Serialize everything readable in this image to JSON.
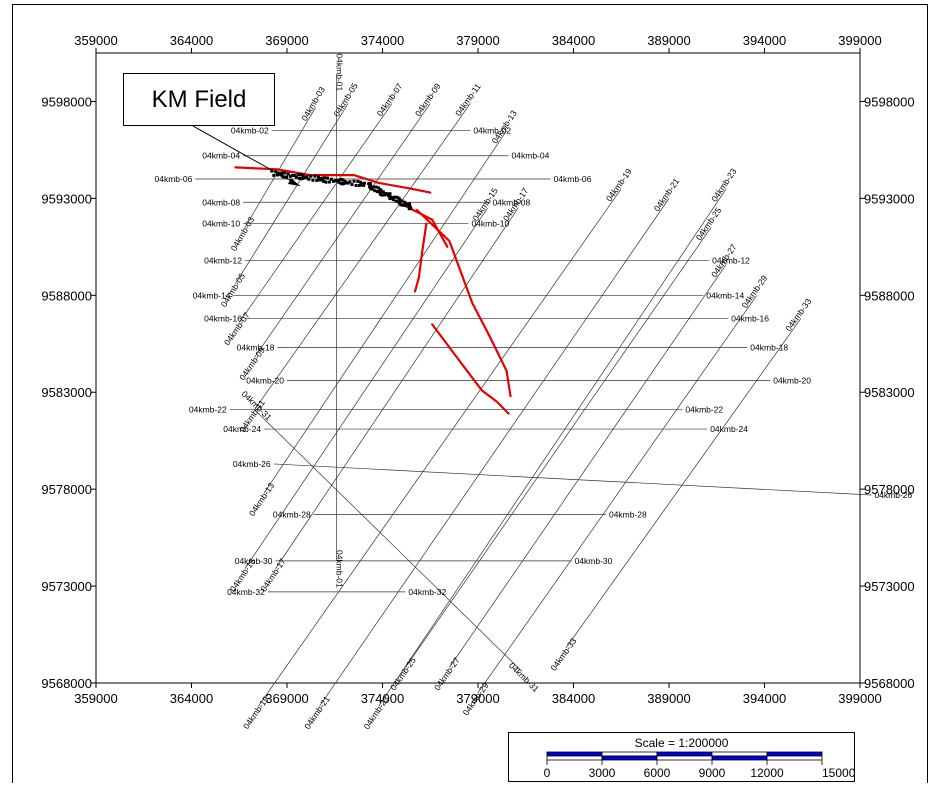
{
  "map": {
    "callout_label": "KM Field",
    "x_ticks": [
      359000,
      364000,
      369000,
      374000,
      379000,
      384000,
      389000,
      394000,
      399000
    ],
    "y_ticks": [
      9598000,
      9593000,
      9588000,
      9583000,
      9578000,
      9573000,
      9568000
    ],
    "x_range": [
      359000,
      399000
    ],
    "y_range": [
      9568000,
      9600500
    ],
    "dip_lines": [
      {
        "label": "04kmb-02",
        "x1": 368200,
        "y1": 9596500,
        "x2": 378600,
        "y2": 9596500
      },
      {
        "label": "04kmb-04",
        "x1": 366700,
        "y1": 9595200,
        "x2": 380600,
        "y2": 9595200
      },
      {
        "label": "04kmb-06",
        "x1": 364200,
        "y1": 9594000,
        "x2": 382800,
        "y2": 9594000
      },
      {
        "label": "04kmb-08",
        "x1": 366700,
        "y1": 9592800,
        "x2": 379600,
        "y2": 9592800
      },
      {
        "label": "04kmb-10",
        "x1": 366700,
        "y1": 9591700,
        "x2": 378500,
        "y2": 9591700
      },
      {
        "label": "04kmb-12",
        "x1": 366800,
        "y1": 9589800,
        "x2": 391100,
        "y2": 9589800
      },
      {
        "label": "04kmb-14",
        "x1": 366200,
        "y1": 9588000,
        "x2": 390800,
        "y2": 9588000
      },
      {
        "label": "04kmb-16",
        "x1": 366800,
        "y1": 9586800,
        "x2": 392100,
        "y2": 9586800
      },
      {
        "label": "04kmb-18",
        "x1": 368500,
        "y1": 9585300,
        "x2": 393100,
        "y2": 9585300
      },
      {
        "label": "04kmb-20",
        "x1": 369000,
        "y1": 9583600,
        "x2": 394300,
        "y2": 9583600
      },
      {
        "label": "04kmb-22",
        "x1": 366000,
        "y1": 9582100,
        "x2": 389700,
        "y2": 9582100
      },
      {
        "label": "04kmb-24",
        "x1": 367800,
        "y1": 9581100,
        "x2": 391000,
        "y2": 9581100
      },
      {
        "label": "04kmb-26",
        "x1": 368300,
        "y1": 9579300,
        "x2": 399600,
        "y2": 9577700
      },
      {
        "label": "04kmb-28",
        "x1": 370400,
        "y1": 9576700,
        "x2": 385700,
        "y2": 9576700
      },
      {
        "label": "04kmb-30",
        "x1": 368400,
        "y1": 9574300,
        "x2": 383900,
        "y2": 9574300
      },
      {
        "label": "04kmb-32",
        "x1": 368000,
        "y1": 9572700,
        "x2": 375200,
        "y2": 9572700
      }
    ],
    "strike_lines": [
      {
        "label": "04kmb-01",
        "x1": 371600,
        "y1": 9599400,
        "x2": 371600,
        "y2": 9574300
      },
      {
        "label": "04kmb-03",
        "x1": 370500,
        "y1": 9597700,
        "x2": 366800,
        "y2": 9591500
      },
      {
        "label": "04kmb-05",
        "x1": 372200,
        "y1": 9597900,
        "x2": 366300,
        "y2": 9588600
      },
      {
        "label": "04kmb-07",
        "x1": 374500,
        "y1": 9597900,
        "x2": 366500,
        "y2": 9586600
      },
      {
        "label": "04kmb-09",
        "x1": 376500,
        "y1": 9597900,
        "x2": 367300,
        "y2": 9584800
      },
      {
        "label": "04kmb-11",
        "x1": 378600,
        "y1": 9597900,
        "x2": 367300,
        "y2": 9582100
      },
      {
        "label": "04kmb-13",
        "x1": 380500,
        "y1": 9596500,
        "x2": 367800,
        "y2": 9577800
      },
      {
        "label": "04kmb-15",
        "x1": 379500,
        "y1": 9592500,
        "x2": 366800,
        "y2": 9573900
      },
      {
        "label": "04kmb-17",
        "x1": 381100,
        "y1": 9592500,
        "x2": 368400,
        "y2": 9573900
      },
      {
        "label": "04kmb-19",
        "x1": 386500,
        "y1": 9593500,
        "x2": 367500,
        "y2": 9566800
      },
      {
        "label": "04kmb-21",
        "x1": 389000,
        "y1": 9593000,
        "x2": 370700,
        "y2": 9566800
      },
      {
        "label": "04kmb-23",
        "x1": 392000,
        "y1": 9593500,
        "x2": 373800,
        "y2": 9566800
      },
      {
        "label": "04kmb-25",
        "x1": 391200,
        "y1": 9591500,
        "x2": 375200,
        "y2": 9568800
      },
      {
        "label": "04kmb-27",
        "x1": 392000,
        "y1": 9589600,
        "x2": 377500,
        "y2": 9568800
      },
      {
        "label": "04kmb-29",
        "x1": 393600,
        "y1": 9588000,
        "x2": 379000,
        "y2": 9567500
      },
      {
        "label": "04kmb-33",
        "x1": 395900,
        "y1": 9586800,
        "x2": 383600,
        "y2": 9569800
      },
      {
        "label": "04kmb-31",
        "x1": 367300,
        "y1": 9582100,
        "x2": 381300,
        "y2": 9568600
      }
    ],
    "faults": [
      {
        "points": [
          [
            375800,
            9592400
          ],
          [
            377500,
            9590800
          ],
          [
            378700,
            9587600
          ],
          [
            379600,
            9585900
          ],
          [
            380500,
            9584100
          ],
          [
            380700,
            9582800
          ]
        ]
      },
      {
        "points": [
          [
            376300,
            9591700
          ],
          [
            376100,
            9590400
          ],
          [
            375900,
            9588900
          ],
          [
            375700,
            9588200
          ]
        ]
      },
      {
        "points": [
          [
            375000,
            9592700
          ],
          [
            376600,
            9591900
          ],
          [
            377400,
            9590500
          ]
        ]
      },
      {
        "points": [
          [
            366300,
            9594600
          ],
          [
            368500,
            9594500
          ],
          [
            370200,
            9594200
          ],
          [
            372500,
            9594200
          ],
          [
            373800,
            9593800
          ],
          [
            375500,
            9593500
          ],
          [
            376500,
            9593300
          ]
        ]
      },
      {
        "points": [
          [
            376600,
            9586500
          ],
          [
            378200,
            9584400
          ],
          [
            379200,
            9583100
          ],
          [
            380000,
            9582500
          ],
          [
            380600,
            9581900
          ]
        ]
      }
    ],
    "well_cluster": [
      [
        368200,
        9594300
      ],
      [
        373200,
        9593700
      ],
      [
        375600,
        9592500
      ]
    ],
    "scale": {
      "label": "Scale = 1:200000",
      "ticks": [
        "0",
        "3000",
        "6000",
        "9000",
        "12000",
        "15000 m"
      ]
    }
  }
}
